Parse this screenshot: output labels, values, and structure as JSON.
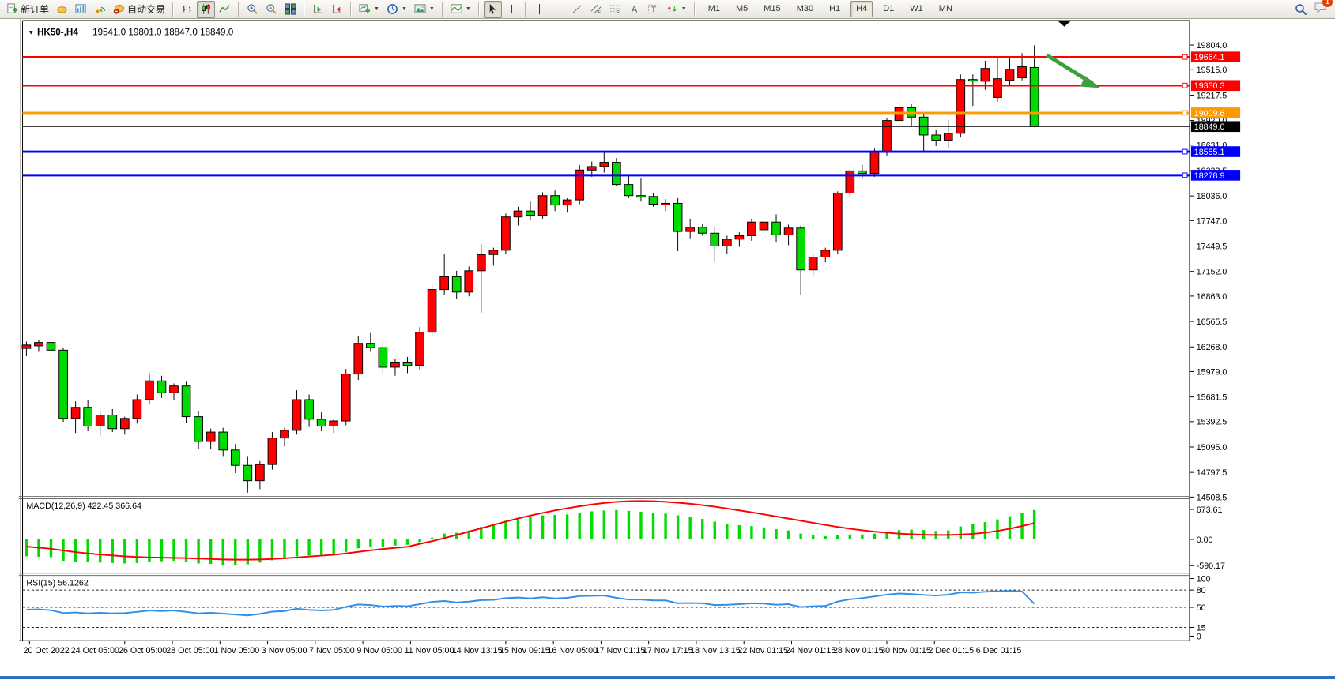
{
  "toolbar": {
    "new_order_label": "新订单",
    "auto_trading_label": "自动交易",
    "timeframes": [
      "M1",
      "M5",
      "M15",
      "M30",
      "H1",
      "H4",
      "D1",
      "W1",
      "MN"
    ],
    "active_timeframe": "H4",
    "notification_badge": "1"
  },
  "chart": {
    "symbol_period": "HK50-,H4",
    "ohlc_text": "19541.0 19801.0 18847.0 18849.0",
    "dropdown_glyph": "▼",
    "price_axis_ticks": [
      "19804.0",
      "19515.0",
      "19217.5",
      "18920.0",
      "18631.0",
      "18333.5",
      "18036.0",
      "17747.0",
      "17449.5",
      "17152.0",
      "16863.0",
      "16565.5",
      "16268.0",
      "15979.0",
      "15681.5",
      "15392.5",
      "15095.0",
      "14797.5",
      "14508.5"
    ],
    "levels": [
      {
        "label": "19664.1",
        "price": 19664.1,
        "color": "#FF0000",
        "width": 2.5,
        "connector": true
      },
      {
        "label": "19330.3",
        "price": 19330.3,
        "color": "#FF0000",
        "width": 2.5,
        "connector": true
      },
      {
        "label": "19009.6",
        "price": 19009.6,
        "color": "#FF9900",
        "width": 3,
        "connector": true
      },
      {
        "label": "18849.0",
        "price": 18849.0,
        "color": "#000000",
        "width": 1,
        "connector": false
      },
      {
        "label": "18555.1",
        "price": 18555.1,
        "color": "#0000FF",
        "width": 3,
        "connector": true
      },
      {
        "label": "18278.9",
        "price": 18278.9,
        "color": "#0000FF",
        "width": 3,
        "connector": true
      }
    ],
    "time_axis_labels": [
      "20 Oct 2022",
      "24 Oct 05:00",
      "26 Oct 05:00",
      "28 Oct 05:00",
      "1 Nov 05:00",
      "3 Nov 05:00",
      "7 Nov 05:00",
      "9 Nov 05:00",
      "11 Nov 05:00",
      "14 Nov 13:15",
      "15 Nov 09:15",
      "16 Nov 05:00",
      "17 Nov 01:15",
      "17 Nov 17:15",
      "18 Nov 13:15",
      "22 Nov 01:15",
      "24 Nov 01:15",
      "28 Nov 01:15",
      "30 Nov 01:15",
      "2 Dec 01:15",
      "6 Dec 01:15"
    ],
    "up_color": "#FF0000",
    "down_color": "#00DC00",
    "annotation_arrow_color": "#3DA03D",
    "candles_ohlc": [
      [
        16250,
        16330,
        16160,
        16290
      ],
      [
        16280,
        16350,
        16210,
        16320
      ],
      [
        16320,
        16340,
        16150,
        16230
      ],
      [
        16230,
        16260,
        15390,
        15430
      ],
      [
        15430,
        15630,
        15260,
        15560
      ],
      [
        15560,
        15650,
        15280,
        15340
      ],
      [
        15340,
        15510,
        15230,
        15470
      ],
      [
        15470,
        15540,
        15270,
        15310
      ],
      [
        15310,
        15450,
        15240,
        15430
      ],
      [
        15430,
        15710,
        15370,
        15650
      ],
      [
        15650,
        15960,
        15590,
        15870
      ],
      [
        15870,
        15930,
        15670,
        15730
      ],
      [
        15730,
        15840,
        15640,
        15810
      ],
      [
        15810,
        15860,
        15380,
        15450
      ],
      [
        15450,
        15520,
        15070,
        15160
      ],
      [
        15160,
        15310,
        15070,
        15270
      ],
      [
        15270,
        15320,
        14980,
        15060
      ],
      [
        15060,
        15130,
        14790,
        14880
      ],
      [
        14880,
        14980,
        14560,
        14700
      ],
      [
        14700,
        14930,
        14600,
        14890
      ],
      [
        14890,
        15270,
        14830,
        15200
      ],
      [
        15200,
        15320,
        15100,
        15290
      ],
      [
        15290,
        15760,
        15240,
        15650
      ],
      [
        15650,
        15710,
        15330,
        15420
      ],
      [
        15420,
        15500,
        15280,
        15340
      ],
      [
        15340,
        15420,
        15260,
        15400
      ],
      [
        15400,
        16010,
        15350,
        15950
      ],
      [
        15950,
        16390,
        15880,
        16310
      ],
      [
        16310,
        16430,
        16210,
        16260
      ],
      [
        16260,
        16340,
        15950,
        16030
      ],
      [
        16030,
        16130,
        15930,
        16090
      ],
      [
        16090,
        16150,
        15960,
        16050
      ],
      [
        16050,
        16500,
        16000,
        16440
      ],
      [
        16440,
        17000,
        16390,
        16940
      ],
      [
        16940,
        17360,
        16880,
        17090
      ],
      [
        17090,
        17160,
        16830,
        16910
      ],
      [
        16910,
        17210,
        16860,
        17160
      ],
      [
        17160,
        17470,
        16670,
        17350
      ],
      [
        17350,
        17430,
        17220,
        17400
      ],
      [
        17400,
        17830,
        17360,
        17790
      ],
      [
        17790,
        17910,
        17690,
        17860
      ],
      [
        17860,
        17970,
        17750,
        17810
      ],
      [
        17810,
        18080,
        17770,
        18040
      ],
      [
        18040,
        18100,
        17860,
        17930
      ],
      [
        17930,
        18010,
        17840,
        17990
      ],
      [
        17990,
        18400,
        17940,
        18340
      ],
      [
        18340,
        18440,
        18260,
        18380
      ],
      [
        18380,
        18560,
        18310,
        18430
      ],
      [
        18430,
        18480,
        18150,
        18170
      ],
      [
        18170,
        18270,
        18010,
        18040
      ],
      [
        18040,
        18240,
        17970,
        18030
      ],
      [
        18030,
        18070,
        17910,
        17940
      ],
      [
        17940,
        18000,
        17860,
        17950
      ],
      [
        17950,
        18010,
        17390,
        17620
      ],
      [
        17620,
        17770,
        17540,
        17670
      ],
      [
        17670,
        17710,
        17570,
        17600
      ],
      [
        17600,
        17670,
        17260,
        17450
      ],
      [
        17450,
        17570,
        17360,
        17530
      ],
      [
        17530,
        17610,
        17440,
        17570
      ],
      [
        17570,
        17770,
        17510,
        17730
      ],
      [
        17640,
        17800,
        17600,
        17730
      ],
      [
        17730,
        17820,
        17490,
        17580
      ],
      [
        17580,
        17700,
        17460,
        17660
      ],
      [
        17660,
        17690,
        16880,
        17170
      ],
      [
        17170,
        17350,
        17110,
        17320
      ],
      [
        17320,
        17430,
        17260,
        17400
      ],
      [
        17400,
        18090,
        17360,
        18070
      ],
      [
        18070,
        18350,
        18020,
        18330
      ],
      [
        18330,
        18400,
        18250,
        18300
      ],
      [
        18300,
        18590,
        18260,
        18560
      ],
      [
        18560,
        18950,
        18510,
        18920
      ],
      [
        18920,
        19290,
        18860,
        19070
      ],
      [
        19070,
        19110,
        18850,
        18960
      ],
      [
        18960,
        19010,
        18560,
        18750
      ],
      [
        18750,
        18810,
        18620,
        18690
      ],
      [
        18690,
        18930,
        18600,
        18770
      ],
      [
        18770,
        19460,
        18720,
        19400
      ],
      [
        19400,
        19460,
        19090,
        19390
      ],
      [
        19380,
        19620,
        19280,
        19530
      ],
      [
        19190,
        19650,
        19140,
        19410
      ],
      [
        19390,
        19670,
        19340,
        19520
      ],
      [
        19420,
        19710,
        19390,
        19550
      ],
      [
        19541,
        19801,
        18847,
        18849
      ]
    ]
  },
  "macd": {
    "label": "MACD(12,26,9) 422.45 366.64",
    "axis_ticks": [
      "673.61",
      "0.00",
      "-590.17"
    ],
    "histogram_color": "#00DC00",
    "signal_color": "#FF0000",
    "histogram": [
      -380,
      -390,
      -400,
      -480,
      -500,
      -510,
      -520,
      -530,
      -540,
      -530,
      -500,
      -490,
      -480,
      -500,
      -540,
      -550,
      -590,
      -580,
      -560,
      -520,
      -470,
      -430,
      -380,
      -360,
      -350,
      -330,
      -280,
      -200,
      -160,
      -170,
      -140,
      -120,
      -60,
      40,
      130,
      150,
      200,
      280,
      340,
      420,
      480,
      500,
      540,
      550,
      560,
      600,
      630,
      650,
      660,
      640,
      620,
      600,
      580,
      540,
      500,
      460,
      400,
      350,
      320,
      300,
      270,
      230,
      200,
      130,
      90,
      70,
      90,
      110,
      110,
      130,
      170,
      210,
      220,
      210,
      190,
      200,
      290,
      340,
      390,
      450,
      520,
      600,
      660
    ],
    "signal": [
      -160,
      -185,
      -210,
      -250,
      -285,
      -315,
      -340,
      -360,
      -380,
      -395,
      -405,
      -410,
      -415,
      -420,
      -430,
      -440,
      -450,
      -455,
      -455,
      -450,
      -440,
      -425,
      -405,
      -385,
      -365,
      -345,
      -315,
      -280,
      -245,
      -215,
      -190,
      -165,
      -100,
      -40,
      30,
      100,
      175,
      250,
      325,
      400,
      470,
      535,
      595,
      650,
      700,
      745,
      785,
      818,
      843,
      858,
      862,
      858,
      845,
      825,
      800,
      770,
      735,
      695,
      652,
      608,
      562,
      515,
      468,
      420,
      372,
      325,
      280,
      240,
      205,
      175,
      150,
      130,
      115,
      105,
      100,
      100,
      108,
      125,
      152,
      190,
      240,
      300,
      367
    ]
  },
  "rsi": {
    "label": "RSI(15) 56.1262",
    "axis_ticks": [
      "100",
      "80",
      "50",
      "15",
      "0"
    ],
    "level_lines": [
      80,
      50,
      15
    ],
    "line_color": "#2F8FE8",
    "values": [
      46,
      46.5,
      45,
      40,
      41,
      39.5,
      40.5,
      39.5,
      40,
      42,
      44.5,
      43.5,
      44.5,
      42,
      39.5,
      40.5,
      39,
      37.5,
      36,
      38.5,
      42.5,
      43.5,
      47.5,
      45.5,
      44.5,
      45.5,
      51,
      55,
      54,
      51.5,
      52.5,
      52,
      55.5,
      59.5,
      61,
      58.5,
      60,
      62.5,
      63,
      66,
      67,
      65.5,
      67.5,
      65.5,
      66.5,
      69.5,
      70,
      70.5,
      66.5,
      63.5,
      63.5,
      62,
      62,
      57,
      57.5,
      57,
      54,
      54.5,
      55.5,
      57,
      56.5,
      54.5,
      55.5,
      50.5,
      52,
      52.5,
      60,
      64,
      66,
      69,
      72,
      74,
      73,
      71.5,
      70.5,
      72,
      76,
      75.5,
      77,
      78,
      78.5,
      77.5,
      56.1
    ]
  },
  "window": {
    "bottom_bar_color": "#2F6FC6"
  }
}
